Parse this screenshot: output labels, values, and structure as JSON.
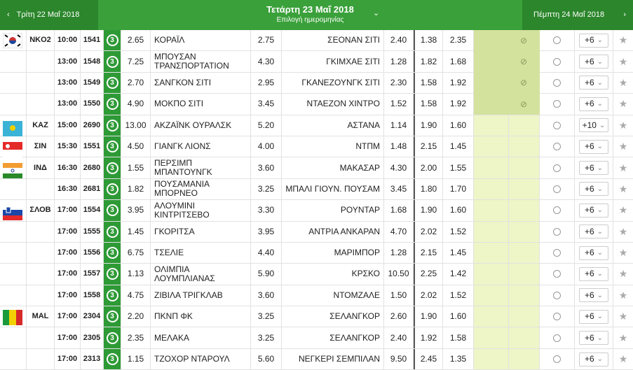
{
  "header": {
    "prev": "Τρίτη 22 Μαΐ 2018",
    "current": "Τετάρτη 23 Μαΐ 2018",
    "subtitle": "Επιλογή ημερομηνίας",
    "next": "Πέμπτη 24 Μαΐ 2018"
  },
  "rows": [
    {
      "league": "NKO2",
      "time": "10:00",
      "code": "1541",
      "badge": "3",
      "home_odd": "2.65",
      "home": "ΚΟΡΑΪΛ",
      "draw_odd": "2.75",
      "away": "ΣΕΟΝΑΝ ΣΙΤΙ",
      "away_odd": "2.40",
      "odd_a": "1.38",
      "odd_b": "2.35",
      "more": "+6"
    },
    {
      "time": "13:00",
      "code": "1548",
      "badge": "3",
      "home_odd": "7.25",
      "home": "ΜΠΟΥΣΑΝ ΤΡΑΝΣΠΟΡΤΑΤΙΟΝ",
      "draw_odd": "4.30",
      "away": "ΓΚΙΜΧΑΕ ΣΙΤΙ",
      "away_odd": "1.28",
      "odd_a": "1.82",
      "odd_b": "1.68",
      "more": "+6"
    },
    {
      "time": "13:00",
      "code": "1549",
      "badge": "3",
      "home_odd": "2.70",
      "home": "ΣΑΝΓΚΟΝ ΣΙΤΙ",
      "draw_odd": "2.95",
      "away": "ΓΚΑΝΕΖΟΥΝΓΚ ΣΙΤΙ",
      "away_odd": "2.30",
      "odd_a": "1.58",
      "odd_b": "1.92",
      "more": "+6"
    },
    {
      "time": "13:00",
      "code": "1550",
      "badge": "3",
      "home_odd": "4.90",
      "home": "ΜΟΚΠΟ ΣΙΤΙ",
      "draw_odd": "3.45",
      "away": "ΝΤΑΕΖΟΝ ΧΙΝΤΡΟ",
      "away_odd": "1.52",
      "odd_a": "1.58",
      "odd_b": "1.92",
      "more": "+6"
    },
    {
      "league": "KAZ",
      "time": "15:00",
      "code": "2690",
      "badge": "3",
      "home_odd": "13.00",
      "home": "ΑΚΖΑΪΝΚ ΟΥΡΑΛΣΚ",
      "draw_odd": "5.20",
      "away": "ΑΣΤΑΝΑ",
      "away_odd": "1.14",
      "odd_a": "1.90",
      "odd_b": "1.60",
      "more": "+10"
    },
    {
      "league": "ΣΙΝ",
      "time": "15:30",
      "code": "1551",
      "badge": "3",
      "home_odd": "4.50",
      "home": "ΓΙΑΝΓΚ ΛΙΟΝΣ",
      "draw_odd": "4.00",
      "away": "ΝΤΠΜ",
      "away_odd": "1.48",
      "odd_a": "2.15",
      "odd_b": "1.45",
      "more": "+6"
    },
    {
      "league": "ΙΝΔ",
      "time": "16:30",
      "code": "2680",
      "badge": "3",
      "home_odd": "1.55",
      "home": "ΠΕΡΣΙΜΠ ΜΠΑΝΤΟΥΝΓΚ",
      "draw_odd": "3.60",
      "away": "ΜΑΚΑΣΑΡ",
      "away_odd": "4.30",
      "odd_a": "2.00",
      "odd_b": "1.55",
      "more": "+6"
    },
    {
      "time": "16:30",
      "code": "2681",
      "badge": "3",
      "home_odd": "1.82",
      "home": "ΠΟΥΣΑΜΑΝΙΑ ΜΠΟΡΝΕΟ",
      "draw_odd": "3.25",
      "away": "ΜΠΑΛΙ ΓΙΟΥΝ. ΠΟΥΣΑΜ",
      "away_odd": "3.45",
      "odd_a": "1.80",
      "odd_b": "1.70",
      "more": "+6"
    },
    {
      "league": "ΣΛΟΒ",
      "time": "17:00",
      "code": "1554",
      "badge": "3",
      "home_odd": "3.95",
      "home": "ΑΛΟΥΜΙΝΙ ΚΙΝΤΡΙΤΣΕΒΟ",
      "draw_odd": "3.30",
      "away": "ΡΟΥΝΤΑΡ",
      "away_odd": "1.68",
      "odd_a": "1.90",
      "odd_b": "1.60",
      "more": "+6"
    },
    {
      "time": "17:00",
      "code": "1555",
      "badge": "3",
      "home_odd": "1.45",
      "home": "ΓΚΟΡΙΤΣΑ",
      "draw_odd": "3.95",
      "away": "ΑΝΤΡΙΑ ΑΝΚΑΡΑΝ",
      "away_odd": "4.70",
      "odd_a": "2.02",
      "odd_b": "1.52",
      "more": "+6"
    },
    {
      "time": "17:00",
      "code": "1556",
      "badge": "3",
      "home_odd": "6.75",
      "home": "ΤΣΕΛΙΕ",
      "draw_odd": "4.40",
      "away": "ΜΑΡΙΜΠΟΡ",
      "away_odd": "1.28",
      "odd_a": "2.15",
      "odd_b": "1.45",
      "more": "+6"
    },
    {
      "time": "17:00",
      "code": "1557",
      "badge": "3",
      "home_odd": "1.13",
      "home": "ΟΛΙΜΠΙΑ ΛΟΥΜΠΛΙΑΝΑΣ",
      "draw_odd": "5.90",
      "away": "ΚΡΣΚΟ",
      "away_odd": "10.50",
      "odd_a": "2.25",
      "odd_b": "1.42",
      "more": "+6"
    },
    {
      "time": "17:00",
      "code": "1558",
      "badge": "3",
      "home_odd": "4.75",
      "home": "ΖΙΒΙΛΑ ΤΡΙΓΚΛΑΒ",
      "draw_odd": "3.60",
      "away": "ΝΤΟΜΖΑΛΕ",
      "away_odd": "1.50",
      "odd_a": "2.02",
      "odd_b": "1.52",
      "more": "+6"
    },
    {
      "league": "MAL",
      "time": "17:00",
      "code": "2304",
      "badge": "3",
      "home_odd": "2.20",
      "home": "ΠΚΝΠ ΦΚ",
      "draw_odd": "3.25",
      "away": "ΣΕΛΑΝΓΚΟΡ",
      "away_odd": "2.60",
      "odd_a": "1.90",
      "odd_b": "1.60",
      "more": "+6"
    },
    {
      "time": "17:00",
      "code": "2305",
      "badge": "3",
      "home_odd": "2.35",
      "home": "ΜΕΛΑΚΑ",
      "draw_odd": "3.25",
      "away": "ΣΕΛΑΝΓΚΟΡ",
      "away_odd": "2.40",
      "odd_a": "1.92",
      "odd_b": "1.58",
      "more": "+6"
    },
    {
      "time": "17:00",
      "code": "2313",
      "badge": "3",
      "home_odd": "1.15",
      "home": "ΤΖΟΧΟΡ ΝΤΑΡΟΥΛ",
      "draw_odd": "5.60",
      "away": "ΝΕΓΚΕΡΙ ΣΕΜΠΙΛΑΝ",
      "away_odd": "9.50",
      "odd_a": "2.45",
      "odd_b": "1.35",
      "more": "+6"
    }
  ]
}
